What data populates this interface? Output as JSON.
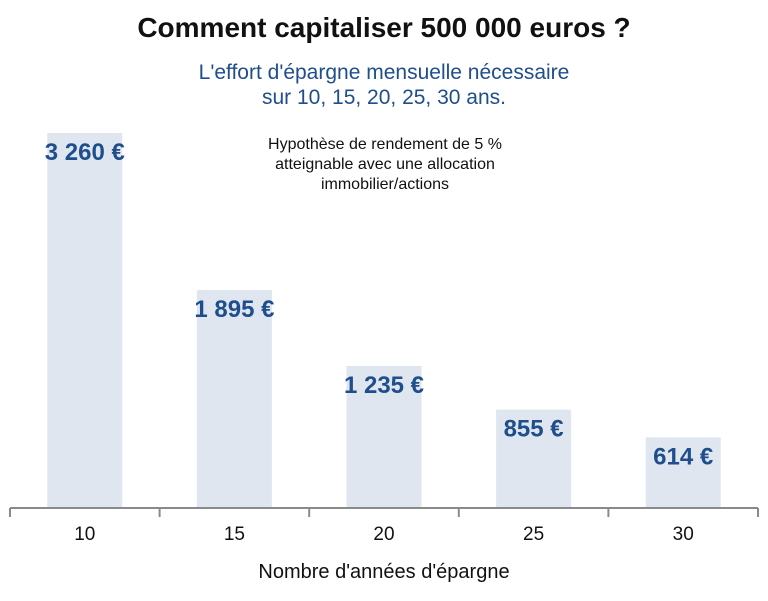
{
  "chart_data": {
    "type": "bar",
    "title": "Comment capitaliser 500 000 euros ?",
    "subtitle_lines": [
      "L'effort d'épargne mensuelle nécessaire",
      "sur 10, 15, 20, 25, 30 ans."
    ],
    "annotation_lines": [
      "Hypothèse de rendement de 5 %",
      "atteignable avec une allocation",
      "immobilier/actions"
    ],
    "xlabel": "Nombre d'années d'épargne",
    "ylabel": "",
    "categories": [
      "10",
      "15",
      "20",
      "25",
      "30"
    ],
    "values": [
      3260,
      1895,
      1235,
      855,
      614
    ],
    "value_labels": [
      "3 260 €",
      "1 895 €",
      "1 235 €",
      "855 €",
      "614 €"
    ],
    "ylim": [
      0,
      3260
    ],
    "grid": false,
    "colors": {
      "bar": "#dfe6ef",
      "value_label": "#1f4e8c",
      "subtitle": "#1f4e8c"
    }
  }
}
